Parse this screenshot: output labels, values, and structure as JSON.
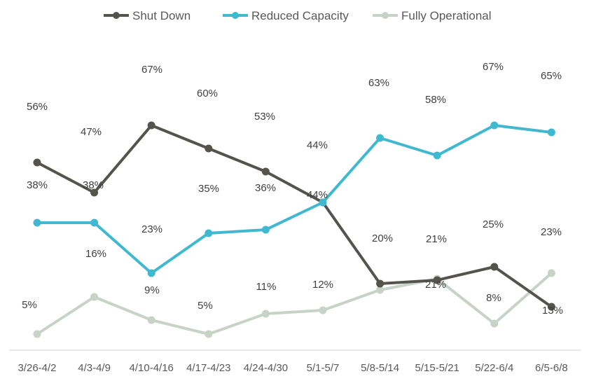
{
  "chart_data": {
    "type": "line",
    "title": "",
    "xlabel": "",
    "ylabel": "",
    "grid": false,
    "legend_position": "top-center",
    "categories": [
      "3/26-4/2",
      "4/3-4/9",
      "4/10-4/16",
      "4/17-4/23",
      "4/24-4/30",
      "5/1-5/7",
      "5/8-5/14",
      "5/15-5/21",
      "5/22-6/4",
      "6/5-6/8"
    ],
    "series": [
      {
        "name": "Shut Down",
        "color": "#54544c",
        "values": [
          56,
          47,
          67,
          60,
          53,
          44,
          20,
          21,
          25,
          13
        ],
        "labels": [
          "56%",
          "47%",
          "67%",
          "60%",
          "53%",
          "44%",
          "20%",
          "21%",
          "25%",
          "13%"
        ]
      },
      {
        "name": "Reduced Capacity",
        "color": "#3fb8d0",
        "values": [
          38,
          38,
          23,
          35,
          36,
          44,
          63,
          58,
          67,
          65
        ],
        "labels": [
          "38%",
          "38%",
          "23%",
          "35%",
          "36%",
          "44%",
          "63%",
          "58%",
          "67%",
          "65%"
        ]
      },
      {
        "name": "Fully Operational",
        "color": "#c7d3c7",
        "values": [
          5,
          16,
          9,
          5,
          11,
          12,
          17,
          21,
          8,
          23
        ],
        "labels": [
          "5%",
          "16%",
          "9%",
          "5%",
          "11%",
          "12%",
          null,
          "21%",
          "8%",
          "23%"
        ]
      }
    ],
    "label_color": "#404040",
    "axis_color": "#d9d9d9"
  }
}
